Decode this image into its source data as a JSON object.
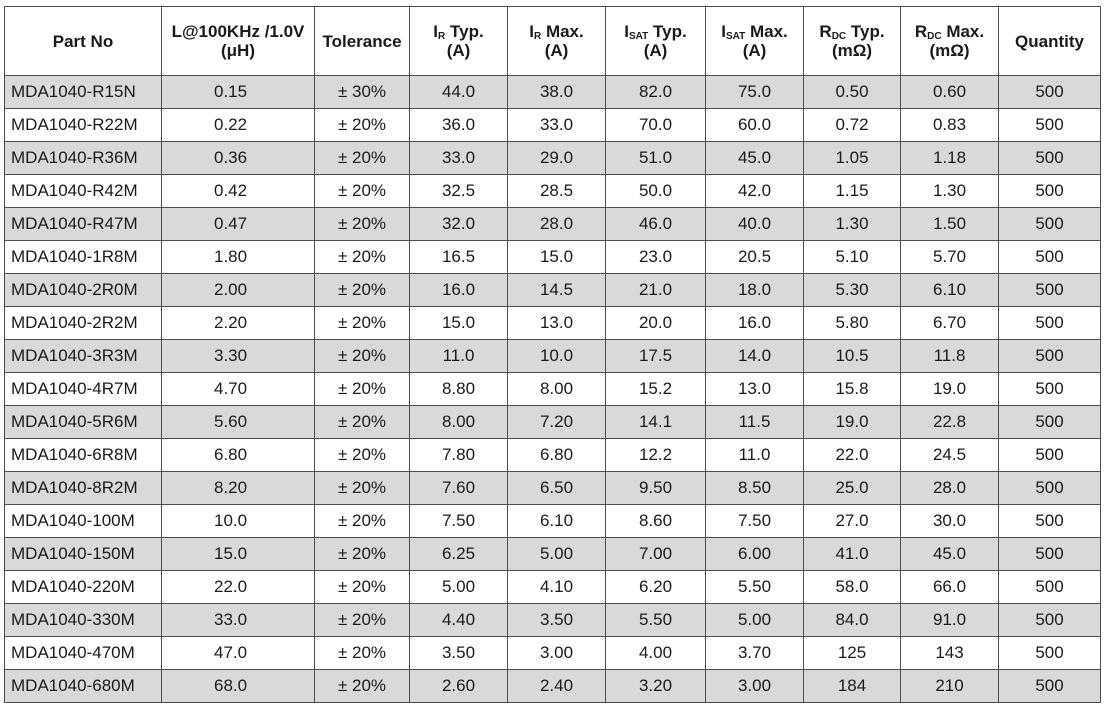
{
  "table": {
    "headers": [
      {
        "line1": "Part No",
        "line2": ""
      },
      {
        "line1": "L@100KHz /1.0V",
        "line2": "(μH)"
      },
      {
        "line1": "Tolerance",
        "line2": ""
      },
      {
        "sym": "I",
        "sub": "R",
        "suffix": " Typ.",
        "unit": "(A)"
      },
      {
        "sym": "I",
        "sub": "R",
        "suffix": " Max.",
        "unit": "(A)"
      },
      {
        "sym": "I",
        "sub": "SAT",
        "suffix": " Typ.",
        "unit": "(A)"
      },
      {
        "sym": "I",
        "sub": "SAT",
        "suffix": " Max.",
        "unit": "(A)"
      },
      {
        "sym": "R",
        "sub": "DC",
        "suffix": " Typ.",
        "unit": "(mΩ)"
      },
      {
        "sym": "R",
        "sub": "DC",
        "suffix": " Max.",
        "unit": "(mΩ)"
      },
      {
        "line1": "Quantity",
        "line2": ""
      }
    ],
    "rows": [
      [
        "MDA1040-R15N",
        "0.15",
        "± 30%",
        "44.0",
        "38.0",
        "82.0",
        "75.0",
        "0.50",
        "0.60",
        "500"
      ],
      [
        "MDA1040-R22M",
        "0.22",
        "± 20%",
        "36.0",
        "33.0",
        "70.0",
        "60.0",
        "0.72",
        "0.83",
        "500"
      ],
      [
        "MDA1040-R36M",
        "0.36",
        "± 20%",
        "33.0",
        "29.0",
        "51.0",
        "45.0",
        "1.05",
        "1.18",
        "500"
      ],
      [
        "MDA1040-R42M",
        "0.42",
        "± 20%",
        "32.5",
        "28.5",
        "50.0",
        "42.0",
        "1.15",
        "1.30",
        "500"
      ],
      [
        "MDA1040-R47M",
        "0.47",
        "± 20%",
        "32.0",
        "28.0",
        "46.0",
        "40.0",
        "1.30",
        "1.50",
        "500"
      ],
      [
        "MDA1040-1R8M",
        "1.80",
        "± 20%",
        "16.5",
        "15.0",
        "23.0",
        "20.5",
        "5.10",
        "5.70",
        "500"
      ],
      [
        "MDA1040-2R0M",
        "2.00",
        "± 20%",
        "16.0",
        "14.5",
        "21.0",
        "18.0",
        "5.30",
        "6.10",
        "500"
      ],
      [
        "MDA1040-2R2M",
        "2.20",
        "± 20%",
        "15.0",
        "13.0",
        "20.0",
        "16.0",
        "5.80",
        "6.70",
        "500"
      ],
      [
        "MDA1040-3R3M",
        "3.30",
        "± 20%",
        "11.0",
        "10.0",
        "17.5",
        "14.0",
        "10.5",
        "11.8",
        "500"
      ],
      [
        "MDA1040-4R7M",
        "4.70",
        "± 20%",
        "8.80",
        "8.00",
        "15.2",
        "13.0",
        "15.8",
        "19.0",
        "500"
      ],
      [
        "MDA1040-5R6M",
        "5.60",
        "± 20%",
        "8.00",
        "7.20",
        "14.1",
        "11.5",
        "19.0",
        "22.8",
        "500"
      ],
      [
        "MDA1040-6R8M",
        "6.80",
        "± 20%",
        "7.80",
        "6.80",
        "12.2",
        "11.0",
        "22.0",
        "24.5",
        "500"
      ],
      [
        "MDA1040-8R2M",
        "8.20",
        "± 20%",
        "7.60",
        "6.50",
        "9.50",
        "8.50",
        "25.0",
        "28.0",
        "500"
      ],
      [
        "MDA1040-100M",
        "10.0",
        "± 20%",
        "7.50",
        "6.10",
        "8.60",
        "7.50",
        "27.0",
        "30.0",
        "500"
      ],
      [
        "MDA1040-150M",
        "15.0",
        "± 20%",
        "6.25",
        "5.00",
        "7.00",
        "6.00",
        "41.0",
        "45.0",
        "500"
      ],
      [
        "MDA1040-220M",
        "22.0",
        "± 20%",
        "5.00",
        "4.10",
        "6.20",
        "5.50",
        "58.0",
        "66.0",
        "500"
      ],
      [
        "MDA1040-330M",
        "33.0",
        "± 20%",
        "4.40",
        "3.50",
        "5.50",
        "5.00",
        "84.0",
        "91.0",
        "500"
      ],
      [
        "MDA1040-470M",
        "47.0",
        "± 20%",
        "3.50",
        "3.00",
        "4.00",
        "3.70",
        "125",
        "143",
        "500"
      ],
      [
        "MDA1040-680M",
        "68.0",
        "± 20%",
        "2.60",
        "2.40",
        "3.20",
        "3.00",
        "184",
        "210",
        "500"
      ]
    ]
  }
}
